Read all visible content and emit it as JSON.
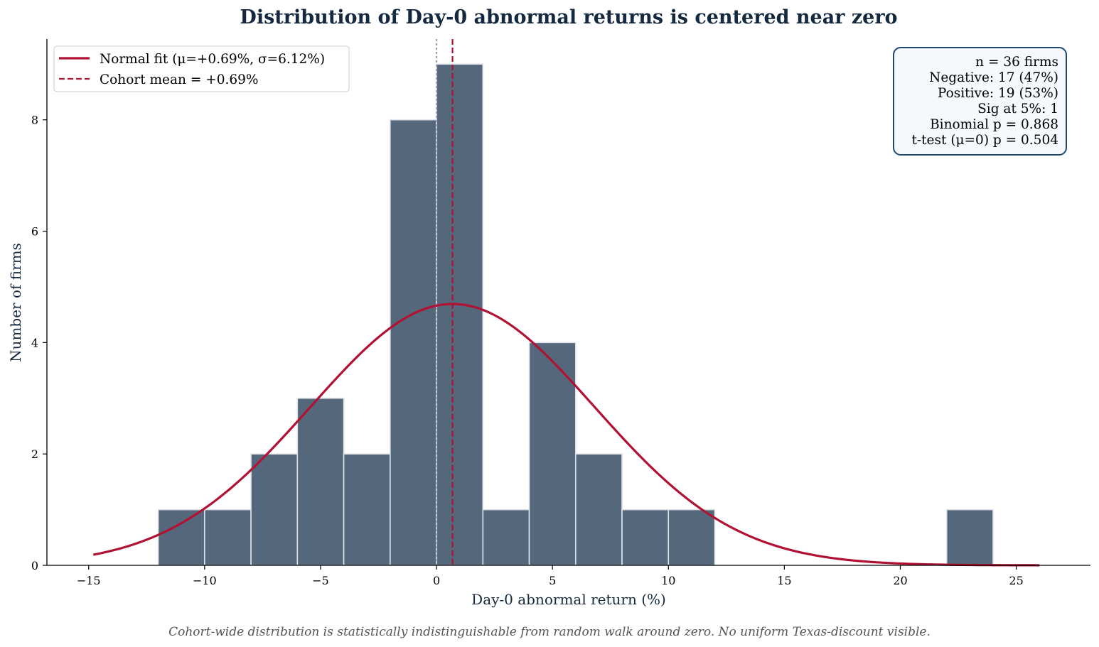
{
  "chart_data": {
    "type": "bar",
    "title": "Distribution of Day-0 abnormal returns is centered near zero",
    "xlabel": "Day-0 abnormal return (%)",
    "ylabel": "Number of firms",
    "xlim": [
      -16.8,
      28.2
    ],
    "ylim": [
      0,
      9.45
    ],
    "xticks": [
      -15,
      -10,
      -5,
      0,
      5,
      10,
      15,
      20,
      25
    ],
    "xtick_labels": [
      "−15",
      "−10",
      "−5",
      "0",
      "5",
      "10",
      "15",
      "20",
      "25"
    ],
    "yticks": [
      0,
      2,
      4,
      6,
      8
    ],
    "ytick_labels": [
      "0",
      "2",
      "4",
      "6",
      "8"
    ],
    "grid": false,
    "bins": [
      {
        "x0": -12,
        "x1": -10,
        "count": 1
      },
      {
        "x0": -10,
        "x1": -8,
        "count": 1
      },
      {
        "x0": -8,
        "x1": -6,
        "count": 2
      },
      {
        "x0": -6,
        "x1": -4,
        "count": 3
      },
      {
        "x0": -4,
        "x1": -2,
        "count": 2
      },
      {
        "x0": -2,
        "x1": 0,
        "count": 8
      },
      {
        "x0": 0,
        "x1": 2,
        "count": 9
      },
      {
        "x0": 2,
        "x1": 4,
        "count": 1
      },
      {
        "x0": 4,
        "x1": 6,
        "count": 4
      },
      {
        "x0": 6,
        "x1": 8,
        "count": 2
      },
      {
        "x0": 8,
        "x1": 10,
        "count": 1
      },
      {
        "x0": 10,
        "x1": 12,
        "count": 1
      },
      {
        "x0": 22,
        "x1": 24,
        "count": 1
      }
    ],
    "bar_color": "#55677b",
    "normal_fit": {
      "mu": 0.69,
      "sigma": 6.12,
      "x_range": [
        -14.8,
        26
      ],
      "color": "#b11233"
    },
    "zero_line": {
      "x": 0,
      "color": "#9aa0b4"
    },
    "mean_line": {
      "x": 0.69,
      "color": "#b11233"
    },
    "legend": {
      "placement": "top-left",
      "entries": [
        {
          "label": "Normal fit (μ=+0.69%, σ=6.12%)",
          "style": "solid"
        },
        {
          "label": "Cohort mean = +0.69%",
          "style": "dashed"
        }
      ]
    },
    "stats_box": {
      "placement": "top-right",
      "lines": [
        "n = 36 firms",
        "Negative: 17 (47%)",
        "Positive: 19 (53%)",
        "Sig at 5%: 1",
        "Binomial p = 0.868",
        "t-test (μ=0) p = 0.504"
      ]
    },
    "caption": "Cohort-wide distribution is statistically indistinguishable from random walk around zero. No uniform Texas-discount visible."
  }
}
